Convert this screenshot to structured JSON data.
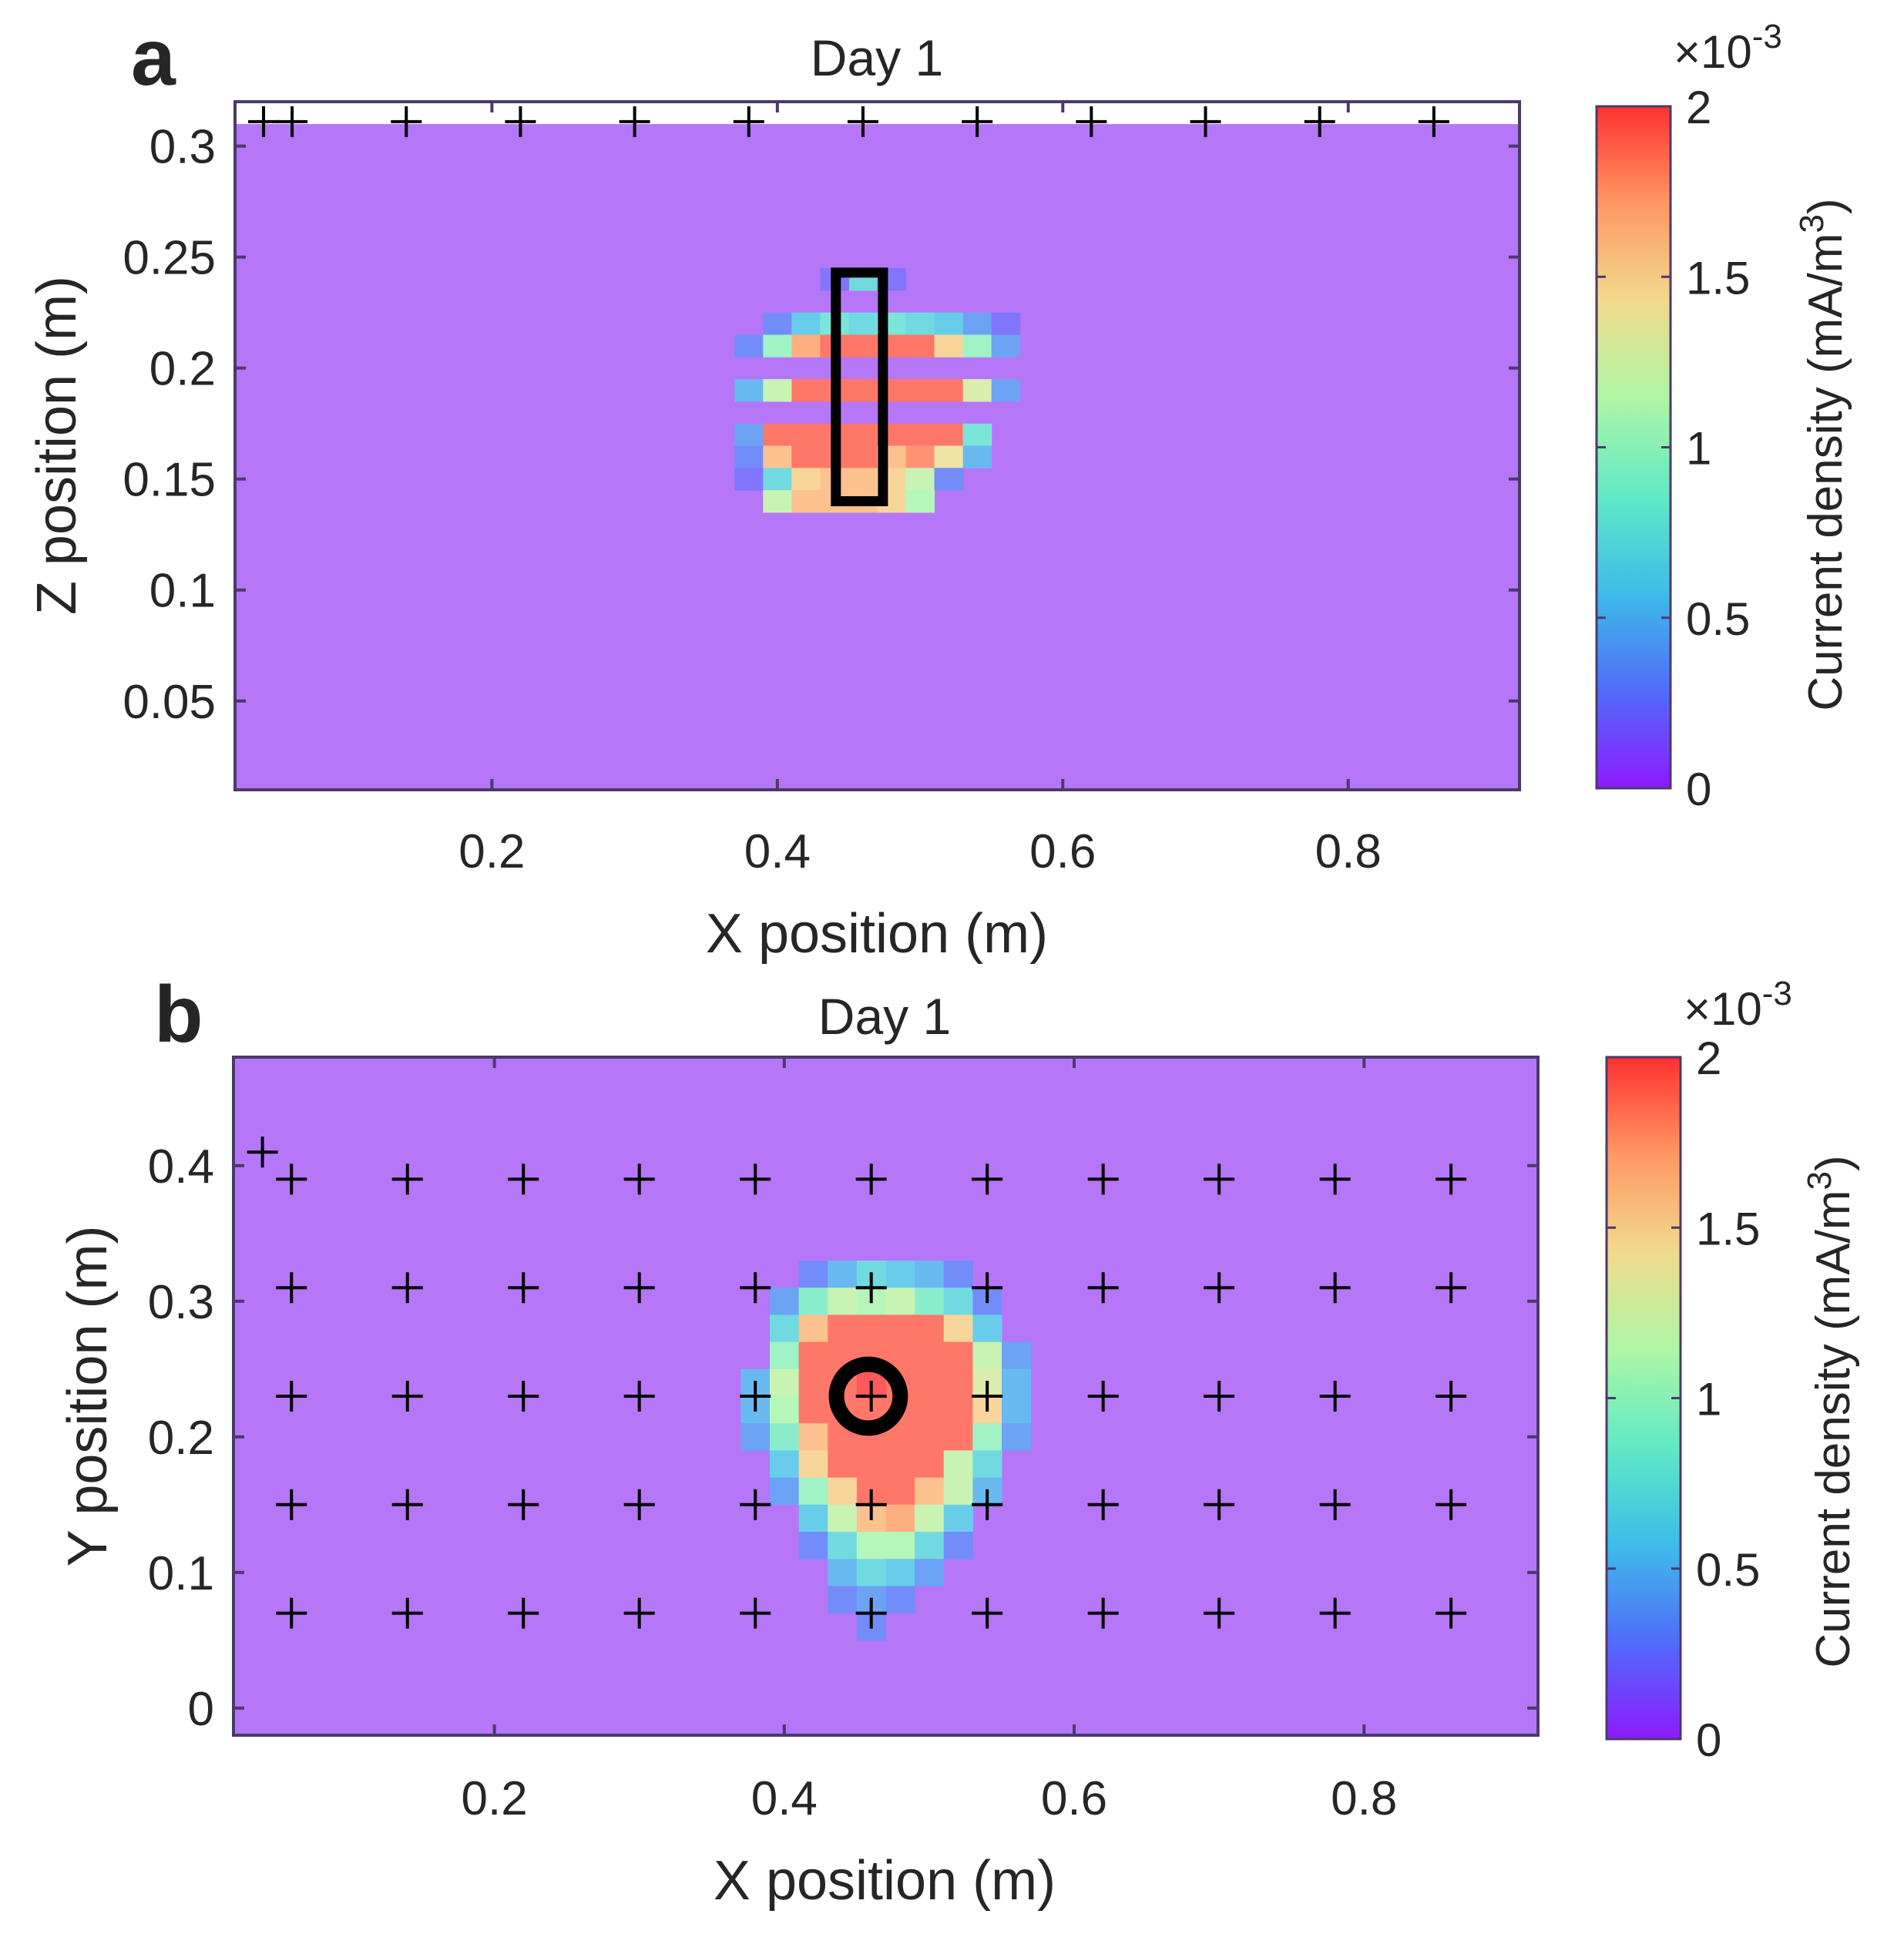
{
  "figure": {
    "colors": {
      "background": "#b676f8",
      "axis": "#4a3a6a",
      "marker": "#000000",
      "rect": "#000000"
    },
    "colormap": [
      "#8000ff",
      "#3c5cf8",
      "#29b4e6",
      "#4fe6c0",
      "#a5f59b",
      "#f1d680",
      "#ff8c50",
      "#ff1a1a"
    ]
  },
  "chart_data": [
    {
      "panel_label": "a",
      "type": "heatmap",
      "title": "Day 1",
      "xlabel": "X position (m)",
      "ylabel": "Z position (m)",
      "xlim": [
        0.02,
        0.92
      ],
      "ylim": [
        0.01,
        0.32
      ],
      "xticks": [
        0.2,
        0.4,
        0.6,
        0.8
      ],
      "yticks": [
        0.05,
        0.1,
        0.15,
        0.2,
        0.25,
        0.3
      ],
      "xtick_labels": [
        "0.2",
        "0.4",
        "0.6",
        "0.8"
      ],
      "ytick_labels": [
        "0.05",
        "0.1",
        "0.15",
        "0.2",
        "0.25",
        "0.3"
      ],
      "background_value": 0.00015,
      "grid_step": [
        0.02,
        0.01
      ],
      "cells": [
        [
          0.46,
          0.24,
          0.0007
        ],
        [
          0.48,
          0.24,
          0.0002
        ],
        [
          0.44,
          0.24,
          0.0002
        ],
        [
          0.4,
          0.22,
          0.0003
        ],
        [
          0.42,
          0.22,
          0.0006
        ],
        [
          0.44,
          0.22,
          0.0008
        ],
        [
          0.46,
          0.22,
          0.0007
        ],
        [
          0.48,
          0.22,
          0.0008
        ],
        [
          0.5,
          0.22,
          0.0007
        ],
        [
          0.52,
          0.22,
          0.0006
        ],
        [
          0.54,
          0.22,
          0.0004
        ],
        [
          0.56,
          0.22,
          0.0002
        ],
        [
          0.38,
          0.21,
          0.0003
        ],
        [
          0.4,
          0.21,
          0.001
        ],
        [
          0.42,
          0.21,
          0.0017
        ],
        [
          0.44,
          0.21,
          0.0019
        ],
        [
          0.46,
          0.21,
          0.0019
        ],
        [
          0.48,
          0.21,
          0.0019
        ],
        [
          0.5,
          0.21,
          0.0019
        ],
        [
          0.52,
          0.21,
          0.0015
        ],
        [
          0.54,
          0.21,
          0.001
        ],
        [
          0.56,
          0.21,
          0.0004
        ],
        [
          0.38,
          0.19,
          0.0005
        ],
        [
          0.4,
          0.19,
          0.0012
        ],
        [
          0.42,
          0.19,
          0.0019
        ],
        [
          0.44,
          0.19,
          0.0019
        ],
        [
          0.46,
          0.19,
          0.0019
        ],
        [
          0.48,
          0.19,
          0.0019
        ],
        [
          0.5,
          0.19,
          0.0019
        ],
        [
          0.52,
          0.19,
          0.0019
        ],
        [
          0.54,
          0.19,
          0.0013
        ],
        [
          0.56,
          0.19,
          0.0004
        ],
        [
          0.38,
          0.17,
          0.0004
        ],
        [
          0.4,
          0.17,
          0.0019
        ],
        [
          0.42,
          0.17,
          0.0019
        ],
        [
          0.44,
          0.17,
          0.0019
        ],
        [
          0.46,
          0.17,
          0.0019
        ],
        [
          0.48,
          0.17,
          0.0019
        ],
        [
          0.5,
          0.17,
          0.0019
        ],
        [
          0.52,
          0.17,
          0.0019
        ],
        [
          0.54,
          0.17,
          0.0008
        ],
        [
          0.38,
          0.16,
          0.0003
        ],
        [
          0.4,
          0.16,
          0.0016
        ],
        [
          0.42,
          0.16,
          0.0019
        ],
        [
          0.44,
          0.16,
          0.0019
        ],
        [
          0.46,
          0.16,
          0.0019
        ],
        [
          0.48,
          0.16,
          0.0016
        ],
        [
          0.5,
          0.16,
          0.0018
        ],
        [
          0.52,
          0.16,
          0.0014
        ],
        [
          0.54,
          0.16,
          0.0005
        ],
        [
          0.38,
          0.15,
          0.0002
        ],
        [
          0.4,
          0.15,
          0.0007
        ],
        [
          0.42,
          0.15,
          0.0015
        ],
        [
          0.44,
          0.15,
          0.0016
        ],
        [
          0.46,
          0.15,
          0.0016
        ],
        [
          0.48,
          0.15,
          0.0015
        ],
        [
          0.5,
          0.15,
          0.0012
        ],
        [
          0.52,
          0.15,
          0.0003
        ],
        [
          0.4,
          0.14,
          0.0012
        ],
        [
          0.42,
          0.14,
          0.0016
        ],
        [
          0.44,
          0.14,
          0.0016
        ],
        [
          0.46,
          0.14,
          0.0016
        ],
        [
          0.48,
          0.14,
          0.0015
        ],
        [
          0.5,
          0.14,
          0.0011
        ]
      ],
      "electrode_markers": [
        [
          0.04,
          0.311
        ],
        [
          0.06,
          0.311
        ],
        [
          0.14,
          0.311
        ],
        [
          0.22,
          0.311
        ],
        [
          0.3,
          0.311
        ],
        [
          0.38,
          0.311
        ],
        [
          0.46,
          0.311
        ],
        [
          0.54,
          0.311
        ],
        [
          0.62,
          0.311
        ],
        [
          0.7,
          0.311
        ],
        [
          0.78,
          0.311
        ],
        [
          0.86,
          0.311
        ]
      ],
      "source_region": {
        "shape": "rectangle",
        "x": [
          0.441,
          0.474
        ],
        "y": [
          0.14,
          0.243
        ]
      },
      "colorbar": {
        "label": "Current density (mA/m",
        "label_superscript": "3",
        "label_suffix": ")",
        "multiplier_base": "×10",
        "multiplier_exp": "-3",
        "ticks": [
          0,
          0.5,
          1,
          1.5,
          2
        ],
        "tick_labels": [
          "0",
          "0.5",
          "1",
          "1.5",
          "2"
        ],
        "range": [
          0,
          0.002
        ]
      }
    },
    {
      "panel_label": "b",
      "type": "heatmap",
      "title": "Day 1",
      "xlabel": "X position (m)",
      "ylabel": "Y position (m)",
      "xlim": [
        0.02,
        0.92
      ],
      "ylim": [
        -0.02,
        0.48
      ],
      "xticks": [
        0.2,
        0.4,
        0.6,
        0.8
      ],
      "yticks": [
        0,
        0.1,
        0.2,
        0.3,
        0.4
      ],
      "xtick_labels": [
        "0.2",
        "0.4",
        "0.6",
        "0.8"
      ],
      "ytick_labels": [
        "0",
        "0.1",
        "0.2",
        "0.3",
        "0.4"
      ],
      "background_value": 0.00015,
      "grid_step": [
        0.02,
        0.02
      ],
      "cells": [
        [
          0.42,
          0.32,
          0.0003
        ],
        [
          0.44,
          0.32,
          0.0005
        ],
        [
          0.46,
          0.32,
          0.0007
        ],
        [
          0.48,
          0.32,
          0.0006
        ],
        [
          0.5,
          0.32,
          0.0005
        ],
        [
          0.52,
          0.32,
          0.0003
        ],
        [
          0.4,
          0.3,
          0.0004
        ],
        [
          0.42,
          0.3,
          0.0009
        ],
        [
          0.44,
          0.3,
          0.0012
        ],
        [
          0.46,
          0.3,
          0.0011
        ],
        [
          0.48,
          0.3,
          0.0012
        ],
        [
          0.5,
          0.3,
          0.0009
        ],
        [
          0.52,
          0.3,
          0.0007
        ],
        [
          0.54,
          0.3,
          0.0003
        ],
        [
          0.4,
          0.28,
          0.0007
        ],
        [
          0.42,
          0.28,
          0.0016
        ],
        [
          0.44,
          0.28,
          0.0019
        ],
        [
          0.46,
          0.28,
          0.0019
        ],
        [
          0.48,
          0.28,
          0.0019
        ],
        [
          0.5,
          0.28,
          0.0019
        ],
        [
          0.52,
          0.28,
          0.0015
        ],
        [
          0.54,
          0.28,
          0.0006
        ],
        [
          0.4,
          0.26,
          0.001
        ],
        [
          0.42,
          0.26,
          0.0019
        ],
        [
          0.44,
          0.26,
          0.0019
        ],
        [
          0.46,
          0.26,
          0.0019
        ],
        [
          0.48,
          0.26,
          0.0019
        ],
        [
          0.5,
          0.26,
          0.0019
        ],
        [
          0.52,
          0.26,
          0.0019
        ],
        [
          0.54,
          0.26,
          0.0012
        ],
        [
          0.56,
          0.26,
          0.0004
        ],
        [
          0.38,
          0.24,
          0.0005
        ],
        [
          0.4,
          0.24,
          0.0012
        ],
        [
          0.42,
          0.24,
          0.0019
        ],
        [
          0.44,
          0.24,
          0.0019
        ],
        [
          0.46,
          0.24,
          0.002
        ],
        [
          0.48,
          0.24,
          0.0019
        ],
        [
          0.5,
          0.24,
          0.0019
        ],
        [
          0.52,
          0.24,
          0.0019
        ],
        [
          0.54,
          0.24,
          0.0013
        ],
        [
          0.56,
          0.24,
          0.0005
        ],
        [
          0.38,
          0.22,
          0.0005
        ],
        [
          0.4,
          0.22,
          0.0011
        ],
        [
          0.42,
          0.22,
          0.0019
        ],
        [
          0.44,
          0.22,
          0.0019
        ],
        [
          0.46,
          0.22,
          0.0019
        ],
        [
          0.48,
          0.22,
          0.0019
        ],
        [
          0.5,
          0.22,
          0.0019
        ],
        [
          0.52,
          0.22,
          0.0019
        ],
        [
          0.54,
          0.22,
          0.0015
        ],
        [
          0.56,
          0.22,
          0.0005
        ],
        [
          0.38,
          0.2,
          0.0004
        ],
        [
          0.4,
          0.2,
          0.0009
        ],
        [
          0.42,
          0.2,
          0.0016
        ],
        [
          0.44,
          0.2,
          0.0019
        ],
        [
          0.46,
          0.2,
          0.0019
        ],
        [
          0.48,
          0.2,
          0.0019
        ],
        [
          0.5,
          0.2,
          0.0019
        ],
        [
          0.52,
          0.2,
          0.0019
        ],
        [
          0.54,
          0.2,
          0.001
        ],
        [
          0.56,
          0.2,
          0.0004
        ],
        [
          0.4,
          0.18,
          0.0006
        ],
        [
          0.42,
          0.18,
          0.0015
        ],
        [
          0.44,
          0.18,
          0.0019
        ],
        [
          0.46,
          0.18,
          0.0019
        ],
        [
          0.48,
          0.18,
          0.0019
        ],
        [
          0.5,
          0.18,
          0.0019
        ],
        [
          0.52,
          0.18,
          0.0012
        ],
        [
          0.54,
          0.18,
          0.0007
        ],
        [
          0.4,
          0.16,
          0.0004
        ],
        [
          0.42,
          0.16,
          0.001
        ],
        [
          0.44,
          0.16,
          0.0015
        ],
        [
          0.46,
          0.16,
          0.0019
        ],
        [
          0.48,
          0.16,
          0.0019
        ],
        [
          0.5,
          0.16,
          0.0016
        ],
        [
          0.52,
          0.16,
          0.0012
        ],
        [
          0.54,
          0.16,
          0.0005
        ],
        [
          0.42,
          0.14,
          0.0006
        ],
        [
          0.44,
          0.14,
          0.0012
        ],
        [
          0.46,
          0.14,
          0.0016
        ],
        [
          0.48,
          0.14,
          0.0017
        ],
        [
          0.5,
          0.14,
          0.0012
        ],
        [
          0.52,
          0.14,
          0.0006
        ],
        [
          0.42,
          0.12,
          0.0003
        ],
        [
          0.44,
          0.12,
          0.0007
        ],
        [
          0.46,
          0.12,
          0.0011
        ],
        [
          0.48,
          0.12,
          0.0011
        ],
        [
          0.5,
          0.12,
          0.0007
        ],
        [
          0.52,
          0.12,
          0.0003
        ],
        [
          0.44,
          0.1,
          0.0005
        ],
        [
          0.46,
          0.1,
          0.0007
        ],
        [
          0.48,
          0.1,
          0.0006
        ],
        [
          0.5,
          0.1,
          0.0004
        ],
        [
          0.44,
          0.08,
          0.0003
        ],
        [
          0.46,
          0.08,
          0.0004
        ],
        [
          0.48,
          0.08,
          0.0003
        ],
        [
          0.46,
          0.06,
          0.0003
        ]
      ],
      "electrode_markers": [
        [
          0.04,
          0.41
        ],
        [
          0.06,
          0.39
        ],
        [
          0.14,
          0.39
        ],
        [
          0.22,
          0.39
        ],
        [
          0.3,
          0.39
        ],
        [
          0.38,
          0.39
        ],
        [
          0.46,
          0.39
        ],
        [
          0.54,
          0.39
        ],
        [
          0.62,
          0.39
        ],
        [
          0.7,
          0.39
        ],
        [
          0.78,
          0.39
        ],
        [
          0.86,
          0.39
        ],
        [
          0.06,
          0.31
        ],
        [
          0.14,
          0.31
        ],
        [
          0.22,
          0.31
        ],
        [
          0.3,
          0.31
        ],
        [
          0.38,
          0.31
        ],
        [
          0.46,
          0.31
        ],
        [
          0.54,
          0.31
        ],
        [
          0.62,
          0.31
        ],
        [
          0.7,
          0.31
        ],
        [
          0.78,
          0.31
        ],
        [
          0.86,
          0.31
        ],
        [
          0.06,
          0.23
        ],
        [
          0.14,
          0.23
        ],
        [
          0.22,
          0.23
        ],
        [
          0.3,
          0.23
        ],
        [
          0.38,
          0.23
        ],
        [
          0.46,
          0.23
        ],
        [
          0.54,
          0.23
        ],
        [
          0.62,
          0.23
        ],
        [
          0.7,
          0.23
        ],
        [
          0.78,
          0.23
        ],
        [
          0.86,
          0.23
        ],
        [
          0.06,
          0.15
        ],
        [
          0.14,
          0.15
        ],
        [
          0.22,
          0.15
        ],
        [
          0.3,
          0.15
        ],
        [
          0.38,
          0.15
        ],
        [
          0.46,
          0.15
        ],
        [
          0.54,
          0.15
        ],
        [
          0.62,
          0.15
        ],
        [
          0.7,
          0.15
        ],
        [
          0.78,
          0.15
        ],
        [
          0.86,
          0.15
        ],
        [
          0.06,
          0.07
        ],
        [
          0.14,
          0.07
        ],
        [
          0.22,
          0.07
        ],
        [
          0.3,
          0.07
        ],
        [
          0.38,
          0.07
        ],
        [
          0.46,
          0.07
        ],
        [
          0.54,
          0.07
        ],
        [
          0.62,
          0.07
        ],
        [
          0.7,
          0.07
        ],
        [
          0.78,
          0.07
        ],
        [
          0.86,
          0.07
        ]
      ],
      "source_region": {
        "shape": "circle",
        "cx": 0.458,
        "cy": 0.23,
        "r": 0.022
      },
      "colorbar": {
        "label": "Current density (mA/m",
        "label_superscript": "3",
        "label_suffix": ")",
        "multiplier_base": "×10",
        "multiplier_exp": "-3",
        "ticks": [
          0,
          0.5,
          1,
          1.5,
          2
        ],
        "tick_labels": [
          "0",
          "0.5",
          "1",
          "1.5",
          "2"
        ],
        "range": [
          0,
          0.002
        ]
      }
    }
  ]
}
